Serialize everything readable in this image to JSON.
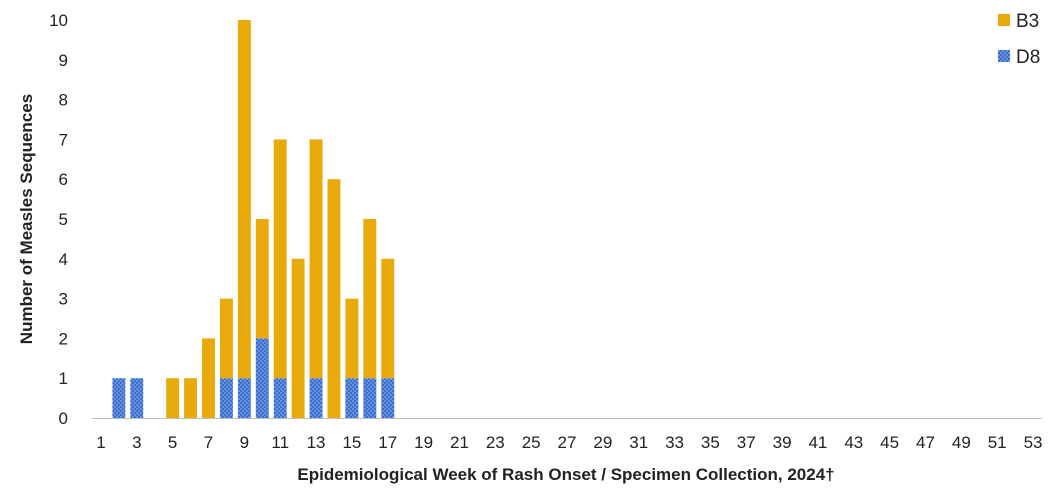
{
  "chart_data": {
    "type": "bar",
    "stacked": true,
    "xlabel": "Epidemiological Week of Rash Onset / Specimen Collection, 2024†",
    "ylabel": "Number of Measles Sequences",
    "ylim": [
      0,
      10
    ],
    "yticks": [
      0,
      1,
      2,
      3,
      4,
      5,
      6,
      7,
      8,
      9,
      10
    ],
    "x": [
      1,
      2,
      3,
      4,
      5,
      6,
      7,
      8,
      9,
      10,
      11,
      12,
      13,
      14,
      15,
      16,
      17,
      18,
      19,
      20,
      21,
      22,
      23,
      24,
      25,
      26,
      27,
      28,
      29,
      30,
      31,
      32,
      33,
      34,
      35,
      36,
      37,
      38,
      39,
      40,
      41,
      42,
      43,
      44,
      45,
      46,
      47,
      48,
      49,
      50,
      51,
      52,
      53
    ],
    "xtick_labels": [
      1,
      3,
      5,
      7,
      9,
      11,
      13,
      15,
      17,
      19,
      21,
      23,
      25,
      27,
      29,
      31,
      33,
      35,
      37,
      39,
      41,
      43,
      45,
      47,
      49,
      51,
      53
    ],
    "legend_position": "top-right",
    "series": [
      {
        "name": "D8",
        "color": "#3a6fcf",
        "pattern": "dotted",
        "values": [
          0,
          1,
          1,
          0,
          0,
          0,
          0,
          1,
          1,
          2,
          1,
          0,
          1,
          0,
          1,
          1,
          1,
          0,
          0,
          0,
          0,
          0,
          0,
          0,
          0,
          0,
          0,
          0,
          0,
          0,
          0,
          0,
          0,
          0,
          0,
          0,
          0,
          0,
          0,
          0,
          0,
          0,
          0,
          0,
          0,
          0,
          0,
          0,
          0,
          0,
          0,
          0,
          0
        ]
      },
      {
        "name": "B3",
        "color": "#e8aa0a",
        "values": [
          0,
          0,
          0,
          0,
          1,
          1,
          2,
          2,
          9,
          3,
          6,
          4,
          6,
          6,
          2,
          4,
          3,
          0,
          0,
          0,
          0,
          0,
          0,
          0,
          0,
          0,
          0,
          0,
          0,
          0,
          0,
          0,
          0,
          0,
          0,
          0,
          0,
          0,
          0,
          0,
          0,
          0,
          0,
          0,
          0,
          0,
          0,
          0,
          0,
          0,
          0,
          0,
          0
        ]
      }
    ]
  }
}
